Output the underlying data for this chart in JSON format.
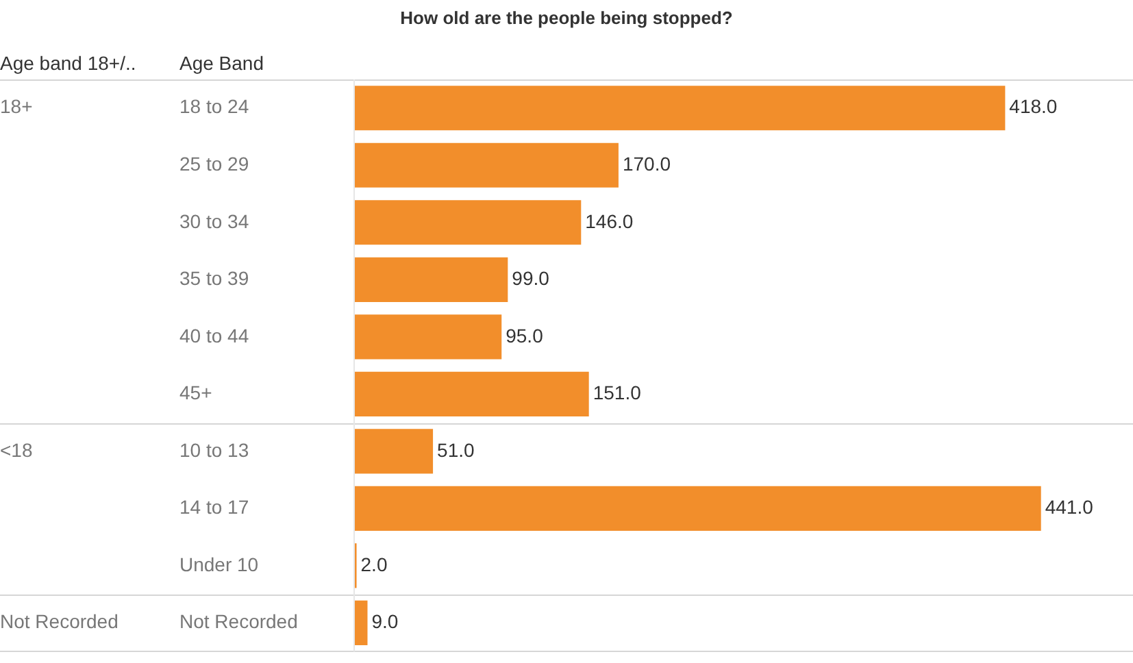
{
  "chart_data": {
    "type": "bar",
    "orientation": "horizontal",
    "title": "How old are the people being stopped?",
    "ylabel": "Age Band",
    "categories": [
      "18 to 24",
      "25 to 29",
      "30 to 34",
      "35 to 39",
      "40 to 44",
      "45+",
      "10 to 13",
      "14 to 17",
      "Under 10",
      "Not Recorded"
    ],
    "values": [
      418,
      170,
      146,
      99,
      95,
      151,
      51,
      441,
      2,
      9
    ],
    "value_labels": [
      "418.0",
      "170.0",
      "146.0",
      "99.0",
      "95.0",
      "151.0",
      "51.0",
      "441.0",
      "2.0",
      "9.0"
    ],
    "color": "#f28e2b",
    "annotations": [
      "Age band 18+/..",
      "18+",
      "<18",
      "Not Recorded"
    ],
    "grid": false,
    "legend": false
  }
}
